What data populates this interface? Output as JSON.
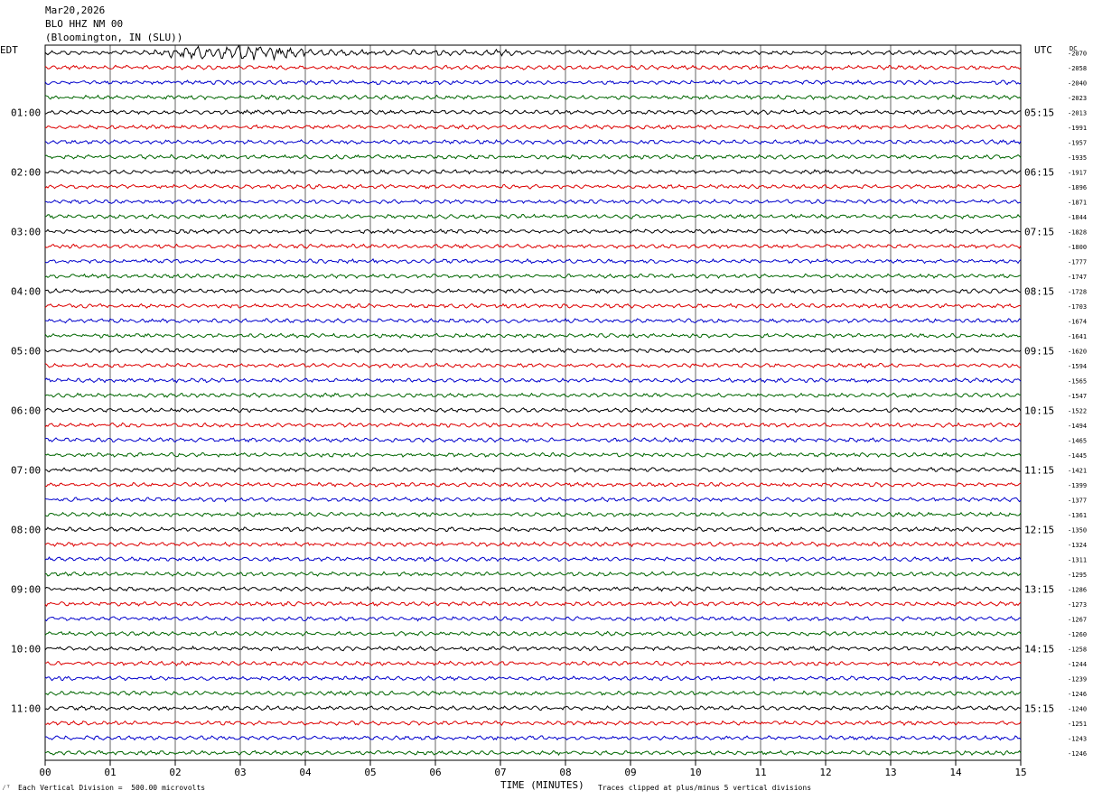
{
  "header": {
    "date": "Mar20,2026",
    "station": "BLO HHZ NM 00",
    "location": "(Bloomington, IN (SLU))"
  },
  "left_tz": "EDT",
  "right_tz": "UTC",
  "dc_label": "DC",
  "footer": {
    "scale": "Each Vertical Division =  500.00 microvolts",
    "clip_note": "Traces clipped at plus/minus 5 vertical divisions",
    "corner_mark": "⁄ᵀ"
  },
  "chart_data": {
    "type": "line",
    "title": "",
    "xlabel": "TIME (MINUTES)",
    "xlim": [
      0,
      15
    ],
    "x_ticks": [
      "00",
      "01",
      "02",
      "03",
      "04",
      "05",
      "06",
      "07",
      "08",
      "09",
      "10",
      "11",
      "12",
      "13",
      "14",
      "15"
    ],
    "grid": true,
    "trace_interval_minutes": 15,
    "trace_colors": [
      "#000000",
      "#dd0000",
      "#0000cc",
      "#006600"
    ],
    "left_hour_labels": [
      "01:00",
      "02:00",
      "03:00",
      "04:00",
      "05:00",
      "06:00",
      "07:00",
      "08:00",
      "09:00",
      "10:00",
      "11:00"
    ],
    "right_hour_labels": [
      "05:15",
      "06:15",
      "07:15",
      "08:15",
      "09:15",
      "10:15",
      "11:15",
      "12:15",
      "13:15",
      "14:15",
      "15:15"
    ],
    "dc_offsets": [
      -2070,
      -2058,
      -2040,
      -2023,
      -2013,
      -1991,
      -1957,
      -1935,
      -1917,
      -1896,
      -1871,
      -1844,
      -1828,
      -1800,
      -1777,
      -1747,
      -1728,
      -1703,
      -1674,
      -1641,
      -1620,
      -1594,
      -1565,
      -1547,
      -1522,
      -1494,
      -1465,
      -1445,
      -1421,
      -1399,
      -1377,
      -1361,
      -1350,
      -1324,
      -1311,
      -1295,
      -1286,
      -1273,
      -1267,
      -1260,
      -1258,
      -1244,
      -1239,
      -1246,
      -1240,
      -1251,
      -1243,
      -1246
    ]
  }
}
